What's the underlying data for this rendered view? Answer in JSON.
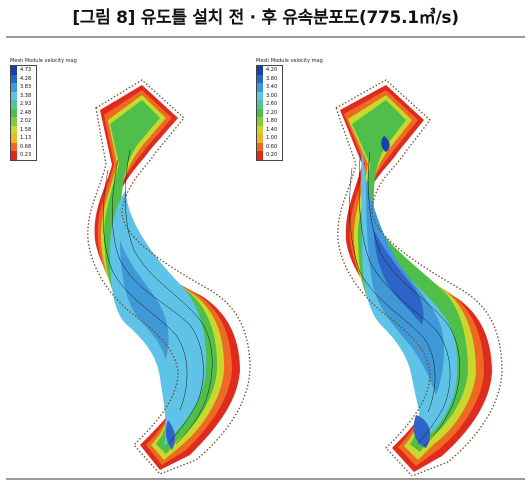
{
  "figure": {
    "title": "[그림 8] 유도틀 설치 전 · 후 유속분포도(775.1㎥/s)"
  },
  "panels": [
    {
      "legend_title": "Mesh Module velocity mag",
      "legend": [
        {
          "label": "4.73",
          "color": "#1b3fa8"
        },
        {
          "label": "4.28",
          "color": "#2e63c8"
        },
        {
          "label": "3.83",
          "color": "#3f98d8"
        },
        {
          "label": "3.38",
          "color": "#5ec3e6"
        },
        {
          "label": "2.93",
          "color": "#58c2a0"
        },
        {
          "label": "2.48",
          "color": "#4fbf4a"
        },
        {
          "label": "2.02",
          "color": "#86c93a"
        },
        {
          "label": "1.58",
          "color": "#c8d82c"
        },
        {
          "label": "1.13",
          "color": "#f0b42a"
        },
        {
          "label": "0.68",
          "color": "#ee6a22"
        },
        {
          "label": "0.23",
          "color": "#e02a1e"
        }
      ]
    },
    {
      "legend_title": "Mesh Module velocity mag",
      "legend": [
        {
          "label": "4.20",
          "color": "#1b3fa8"
        },
        {
          "label": "3.80",
          "color": "#2e63c8"
        },
        {
          "label": "3.40",
          "color": "#3f98d8"
        },
        {
          "label": "3.00",
          "color": "#5ec3e6"
        },
        {
          "label": "2.60",
          "color": "#58c2a0"
        },
        {
          "label": "2.20",
          "color": "#4fbf4a"
        },
        {
          "label": "1.80",
          "color": "#86c93a"
        },
        {
          "label": "1.40",
          "color": "#c8d82c"
        },
        {
          "label": "1.00",
          "color": "#f0b42a"
        },
        {
          "label": "0.60",
          "color": "#ee6a22"
        },
        {
          "label": "0.20",
          "color": "#e02a1e"
        }
      ]
    }
  ]
}
